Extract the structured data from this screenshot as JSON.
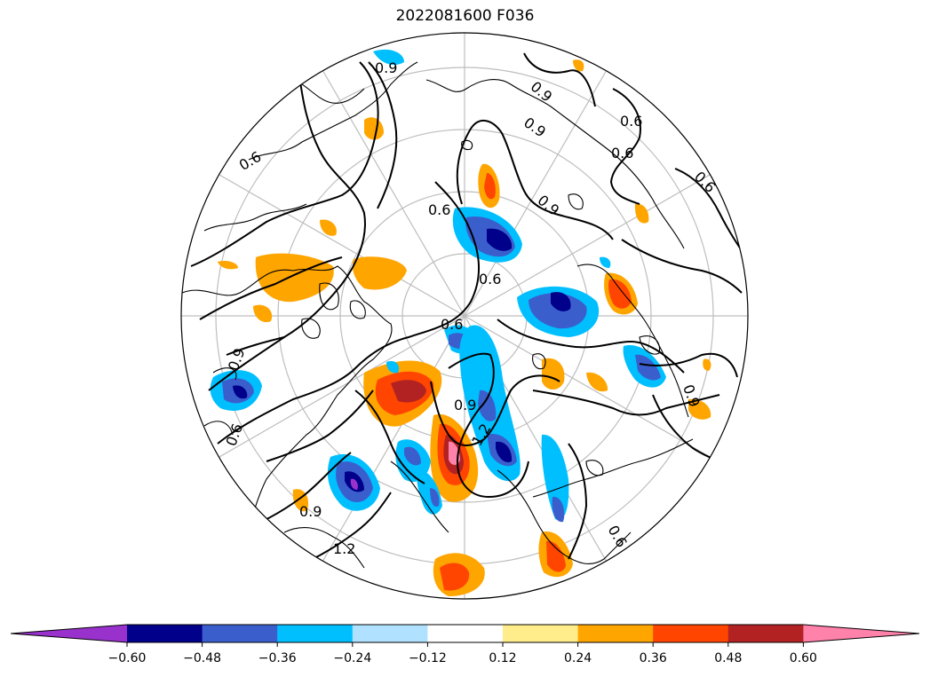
{
  "title": "2022081600 F036",
  "contour_labels": [
    "0.9",
    "0.9",
    "0.6",
    "0.6",
    "0.9",
    "0.6",
    "0.6",
    "0.6",
    "0.6",
    "0.6",
    "0.9",
    "0.9",
    "1.2",
    "0.9",
    "0.6",
    "0.6",
    "1.2",
    "0.9",
    "0.9"
  ],
  "colorbar": {
    "ticks": [
      "−0.60",
      "−0.48",
      "−0.36",
      "−0.24",
      "−0.12",
      "0.12",
      "0.24",
      "0.36",
      "0.48",
      "0.60"
    ],
    "colors": [
      "#9932cc",
      "#00008b",
      "#3a5fcd",
      "#00bfff",
      "#b0e2ff",
      "#ffffff",
      "#ffec8b",
      "#ffa500",
      "#ff4500",
      "#b22222",
      "#ff82ab"
    ]
  }
}
